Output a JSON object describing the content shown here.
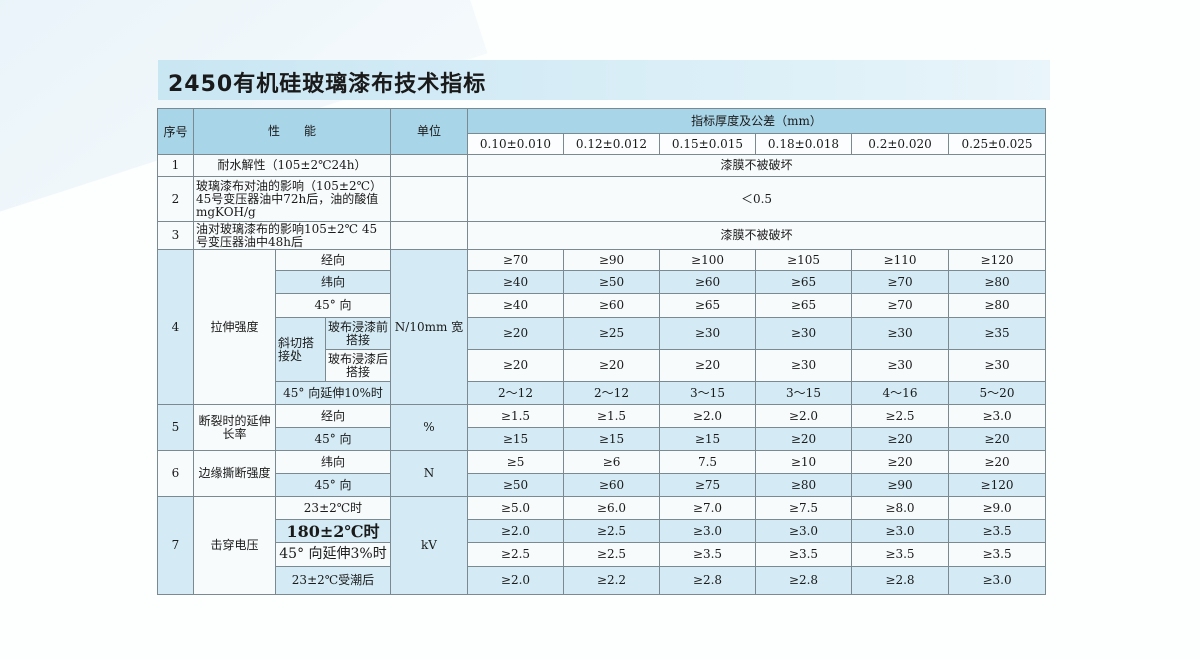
{
  "title": "2450有机硅玻璃漆布技术指标",
  "header": {
    "seq": "序号",
    "property": "性　　能",
    "unit": "单位",
    "spec": "指标厚度及公差（mm）",
    "thicknesses": [
      "0.10±0.010",
      "0.12±0.012",
      "0.15±0.015",
      "0.18±0.018",
      "0.2±0.020",
      "0.25±0.025"
    ]
  },
  "sections": [
    {
      "seq": "1",
      "property": "耐水解性（105±2℃24h）",
      "unit": "",
      "merged": "漆膜不被破坏"
    },
    {
      "seq": "2",
      "property": "玻璃漆布对油的影响（105±2℃）45号变压器油中72h后，油的酸值 mgKOH/g",
      "unit": "",
      "merged": "＜0.5"
    },
    {
      "seq": "3",
      "property": "油对玻璃漆布的影响105±2℃ 45号变压器油中48h后",
      "unit": "",
      "merged": "漆膜不被破坏"
    },
    {
      "seq": "4",
      "property": "拉伸强度",
      "unit": "N/10mm 宽",
      "group": "斜切搭接处",
      "rows": [
        {
          "label": "经向",
          "values": [
            "≥70",
            "≥90",
            "≥100",
            "≥105",
            "≥110",
            "≥120"
          ]
        },
        {
          "label": "纬向",
          "values": [
            "≥40",
            "≥50",
            "≥60",
            "≥65",
            "≥70",
            "≥80"
          ]
        },
        {
          "label": "45° 向",
          "values": [
            "≥40",
            "≥60",
            "≥65",
            "≥65",
            "≥70",
            "≥80"
          ]
        },
        {
          "label": "玻布浸漆前搭接",
          "values": [
            "≥20",
            "≥25",
            "≥30",
            "≥30",
            "≥30",
            "≥35"
          ]
        },
        {
          "label": "玻布浸漆后搭接",
          "values": [
            "≥20",
            "≥20",
            "≥20",
            "≥30",
            "≥30",
            "≥30"
          ]
        },
        {
          "label": "45° 向延伸10%时",
          "values": [
            "2～12",
            "2～12",
            "3～15",
            "3～15",
            "4～16",
            "5～20"
          ]
        }
      ]
    },
    {
      "seq": "5",
      "property": "断裂时的延伸长率",
      "unit": "%",
      "rows": [
        {
          "label": "经向",
          "values": [
            "≥1.5",
            "≥1.5",
            "≥2.0",
            "≥2.0",
            "≥2.5",
            "≥3.0"
          ]
        },
        {
          "label": "45° 向",
          "values": [
            "≥15",
            "≥15",
            "≥15",
            "≥20",
            "≥20",
            "≥20"
          ]
        }
      ]
    },
    {
      "seq": "6",
      "property": "边缘撕断强度",
      "unit": "N",
      "rows": [
        {
          "label": "纬向",
          "values": [
            "≥5",
            "≥6",
            "7.5",
            "≥10",
            "≥20",
            "≥20"
          ]
        },
        {
          "label": "45° 向",
          "values": [
            "≥50",
            "≥60",
            "≥75",
            "≥80",
            "≥90",
            "≥120"
          ]
        }
      ]
    },
    {
      "seq": "7",
      "property": "击穿电压",
      "unit": "kV",
      "rows": [
        {
          "label": "23±2℃时",
          "values": [
            "≥5.0",
            "≥6.0",
            "≥7.0",
            "≥7.5",
            "≥8.0",
            "≥9.0"
          ]
        },
        {
          "label": "180±2℃时",
          "values": [
            "≥2.0",
            "≥2.5",
            "≥3.0",
            "≥3.0",
            "≥3.0",
            "≥3.5"
          ]
        },
        {
          "label": "45° 向延伸3%时",
          "values": [
            "≥2.5",
            "≥2.5",
            "≥3.5",
            "≥3.5",
            "≥3.5",
            "≥3.5"
          ]
        },
        {
          "label": "23±2℃受潮后",
          "values": [
            "≥2.0",
            "≥2.2",
            "≥2.8",
            "≥2.8",
            "≥2.8",
            "≥3.0"
          ]
        }
      ]
    }
  ]
}
